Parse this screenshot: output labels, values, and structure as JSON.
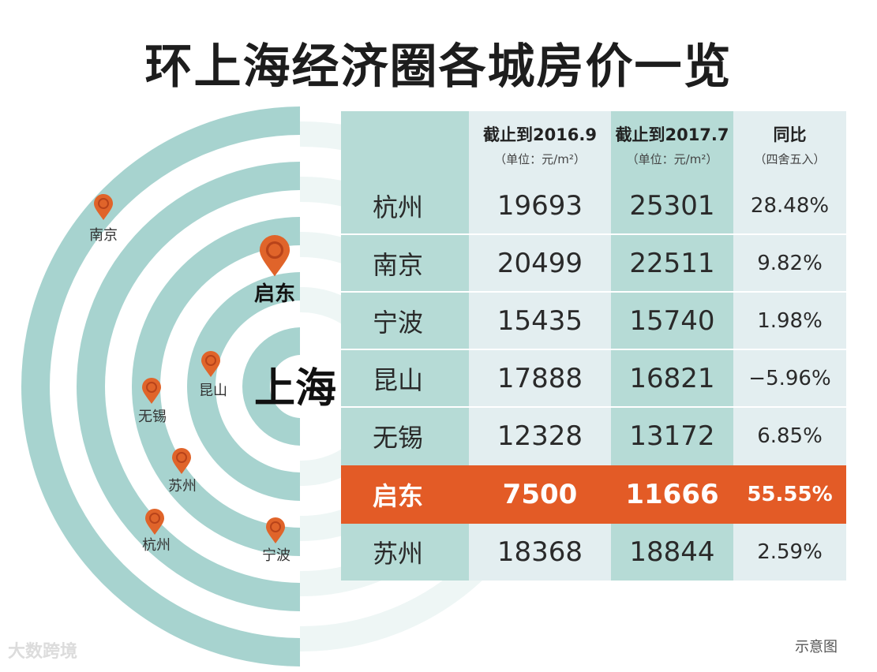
{
  "title": "环上海经济圈各城房价一览",
  "map": {
    "center_label": "上海",
    "pins": [
      {
        "id": "nanjing",
        "label": "南京"
      },
      {
        "id": "qidong",
        "label": "启东"
      },
      {
        "id": "kunshan",
        "label": "昆山"
      },
      {
        "id": "wuxi",
        "label": "无锡"
      },
      {
        "id": "suzhou",
        "label": "苏州"
      },
      {
        "id": "hangzhou",
        "label": "杭州"
      },
      {
        "id": "ningbo",
        "label": "宁波"
      }
    ]
  },
  "table": {
    "headers": [
      {
        "main": "",
        "sub": ""
      },
      {
        "main": "截止到2016.9",
        "sub": "（单位：元/m²）"
      },
      {
        "main": "截止到2017.7",
        "sub": "（单位：元/m²）"
      },
      {
        "main": "同比",
        "sub": "（四舍五入）"
      }
    ],
    "rows": [
      {
        "city": "杭州",
        "v2016": "19693",
        "v2017": "25301",
        "yoy": "28.48%"
      },
      {
        "city": "南京",
        "v2016": "20499",
        "v2017": "22511",
        "yoy": "9.82%"
      },
      {
        "city": "宁波",
        "v2016": "15435",
        "v2017": "15740",
        "yoy": "1.98%"
      },
      {
        "city": "昆山",
        "v2016": "17888",
        "v2017": "16821",
        "yoy": "−5.96%"
      },
      {
        "city": "无锡",
        "v2016": "12328",
        "v2017": "13172",
        "yoy": "6.85%"
      },
      {
        "city": "启东",
        "v2016": "7500",
        "v2017": "11666",
        "yoy": "55.55%",
        "highlight": true
      },
      {
        "city": "苏州",
        "v2016": "18368",
        "v2017": "18844",
        "yoy": "2.59%"
      }
    ]
  },
  "note": "示意图",
  "watermark": "大数跨境",
  "colors": {
    "ring": "#a7d3cf",
    "ring_light": "#dff0ed",
    "highlight": "#e35b26",
    "pin": "#e0642a",
    "col_light": "#e3eef0",
    "col_teal": "#b6dbd6"
  }
}
